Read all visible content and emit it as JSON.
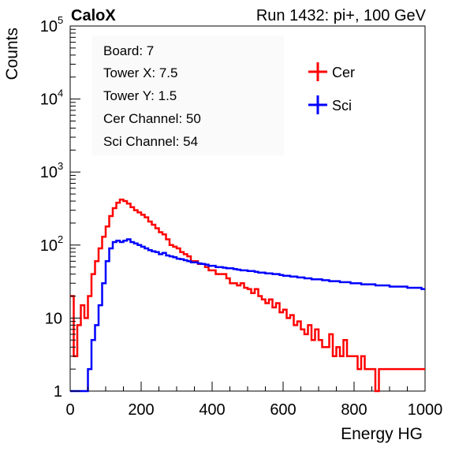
{
  "header": {
    "brand": "CaloX",
    "run_info": "Run 1432: pi+, 100 GeV"
  },
  "info_box": {
    "lines": [
      "Board: 7",
      "Tower X: 7.5",
      "Tower Y: 1.5",
      "Cer Channel: 50",
      "Sci Channel: 54"
    ]
  },
  "colors": {
    "cer": "#ff0000",
    "sci": "#0000ff",
    "axis": "#000000",
    "info_box_bg": "#fafafa"
  },
  "chart_data": {
    "type": "line",
    "style": "step histogram",
    "xlabel": "Energy HG",
    "ylabel": "Counts",
    "xlim": [
      0,
      1000
    ],
    "ylim": [
      1,
      100000
    ],
    "yscale": "log",
    "grid": false,
    "legend_position": "top-right",
    "x_ticks": [
      0,
      200,
      400,
      600,
      800,
      1000
    ],
    "y_ticks": [
      {
        "value": 1,
        "label": "1"
      },
      {
        "value": 10,
        "label": "10"
      },
      {
        "value": 100,
        "label": "10",
        "exp": "2"
      },
      {
        "value": 1000,
        "label": "10",
        "exp": "3"
      },
      {
        "value": 10000,
        "label": "10",
        "exp": "4"
      },
      {
        "value": 100000,
        "label": "10",
        "exp": "5"
      }
    ],
    "series": [
      {
        "name": "Cer",
        "color": "#ff0000",
        "x": [
          0,
          10,
          20,
          30,
          40,
          50,
          60,
          70,
          80,
          90,
          100,
          110,
          120,
          130,
          140,
          150,
          160,
          170,
          180,
          190,
          200,
          210,
          220,
          230,
          240,
          250,
          260,
          270,
          280,
          290,
          300,
          310,
          320,
          330,
          340,
          350,
          360,
          370,
          380,
          390,
          400,
          410,
          420,
          430,
          440,
          450,
          460,
          470,
          480,
          490,
          500,
          510,
          520,
          530,
          540,
          550,
          560,
          570,
          580,
          590,
          600,
          610,
          620,
          630,
          640,
          650,
          660,
          670,
          680,
          690,
          700,
          710,
          720,
          730,
          740,
          750,
          760,
          770,
          780,
          790,
          800,
          810,
          820,
          830,
          840,
          850,
          860,
          870,
          880,
          890,
          900,
          910,
          920,
          930,
          940,
          950,
          960,
          970,
          980,
          990
        ],
        "values": [
          20,
          3,
          8,
          15,
          10,
          20,
          40,
          60,
          90,
          130,
          180,
          250,
          320,
          380,
          420,
          400,
          370,
          330,
          300,
          280,
          260,
          240,
          210,
          190,
          170,
          150,
          140,
          120,
          100,
          95,
          90,
          80,
          75,
          70,
          60,
          60,
          55,
          55,
          50,
          45,
          45,
          40,
          40,
          40,
          35,
          30,
          30,
          28,
          30,
          26,
          25,
          22,
          25,
          20,
          18,
          16,
          18,
          14,
          16,
          12,
          13,
          10,
          11,
          8,
          9,
          7,
          6,
          8,
          5,
          7,
          5,
          4,
          4,
          6,
          3,
          4,
          3,
          5,
          3,
          3,
          3,
          2,
          3,
          2,
          2,
          2,
          1,
          2,
          2,
          2,
          2,
          2,
          2,
          2,
          2,
          2,
          2,
          2,
          2,
          2
        ]
      },
      {
        "name": "Sci",
        "color": "#0000ff",
        "x": [
          0,
          10,
          20,
          30,
          40,
          50,
          60,
          70,
          80,
          90,
          100,
          110,
          120,
          130,
          140,
          150,
          160,
          170,
          180,
          190,
          200,
          210,
          220,
          230,
          240,
          250,
          260,
          270,
          280,
          290,
          300,
          310,
          320,
          330,
          340,
          350,
          360,
          370,
          380,
          390,
          400,
          410,
          420,
          430,
          440,
          450,
          460,
          470,
          480,
          490,
          500,
          510,
          520,
          530,
          540,
          550,
          560,
          570,
          580,
          590,
          600,
          610,
          620,
          630,
          640,
          650,
          660,
          670,
          680,
          690,
          700,
          710,
          720,
          730,
          740,
          750,
          760,
          770,
          780,
          790,
          800,
          810,
          820,
          830,
          840,
          850,
          860,
          870,
          880,
          890,
          900,
          910,
          920,
          930,
          940,
          950,
          960,
          970,
          980,
          990
        ],
        "values": [
          1,
          1,
          1,
          1,
          1,
          2,
          5,
          8,
          15,
          30,
          60,
          90,
          110,
          115,
          110,
          115,
          120,
          110,
          105,
          100,
          95,
          90,
          85,
          82,
          80,
          75,
          78,
          72,
          70,
          68,
          65,
          64,
          62,
          60,
          58,
          58,
          56,
          55,
          54,
          52,
          52,
          50,
          50,
          49,
          48,
          48,
          47,
          46,
          45,
          45,
          44,
          44,
          43,
          42,
          42,
          41,
          41,
          40,
          40,
          39,
          38,
          38,
          37,
          37,
          36,
          36,
          35,
          35,
          34,
          34,
          34,
          33,
          33,
          32,
          32,
          32,
          31,
          31,
          31,
          30,
          30,
          30,
          29,
          29,
          29,
          29,
          28,
          28,
          28,
          28,
          27,
          27,
          27,
          27,
          27,
          26,
          26,
          26,
          26,
          25
        ]
      }
    ]
  }
}
